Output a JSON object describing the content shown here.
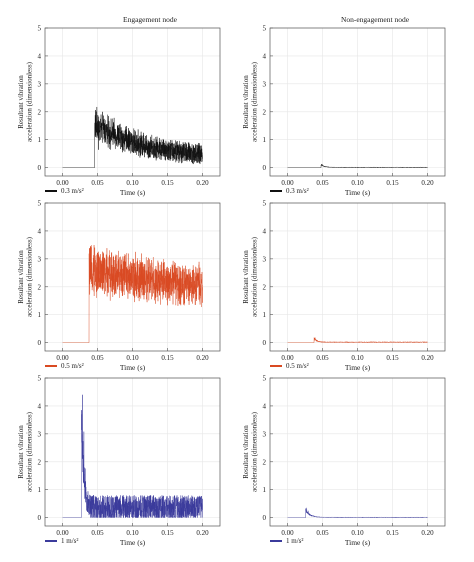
{
  "columns": [
    "Engagement node",
    "Non-engagement node"
  ],
  "chart_data": [
    {
      "type": "line",
      "column": "Engagement node",
      "xlabel": "Time (s)",
      "ylabel": [
        "Resultant vibration",
        "acceleration (dimensionless)"
      ],
      "xlim": [
        -0.025,
        0.225
      ],
      "ylim": [
        -0.3,
        5
      ],
      "xticks": [
        0.0,
        0.05,
        0.1,
        0.15,
        0.2
      ],
      "yticks": [
        0,
        1,
        2,
        3,
        4,
        5
      ],
      "grid": true,
      "series": [
        {
          "name": "0.3 m/s²",
          "color": "#111111",
          "onset": 0.046,
          "peak": 1.6,
          "level": 0.3,
          "level_noise": 0.35,
          "decay": 0.08,
          "spike_count": 3
        }
      ]
    },
    {
      "type": "line",
      "column": "Non-engagement node",
      "xlabel": "Time (s)",
      "ylabel": [
        "Resultant vibration",
        "acceleration (dimensionless)"
      ],
      "xlim": [
        -0.025,
        0.225
      ],
      "ylim": [
        -0.3,
        5
      ],
      "xticks": [
        0.0,
        0.05,
        0.1,
        0.15,
        0.2
      ],
      "yticks": [
        0,
        1,
        2,
        3,
        4,
        5
      ],
      "grid": true,
      "series": [
        {
          "name": "0.3 m/s²",
          "color": "#111111",
          "onset": 0.048,
          "peak": 0.12,
          "level": 0.02,
          "level_noise": 0.02,
          "decay": 0.005,
          "spike_count": 1
        }
      ]
    },
    {
      "type": "line",
      "column": "Engagement node",
      "xlabel": "Time (s)",
      "ylabel": [
        "Resultant vibration",
        "acceleration (dimensionless)"
      ],
      "xlim": [
        -0.025,
        0.225
      ],
      "ylim": [
        -0.3,
        5
      ],
      "xticks": [
        0.0,
        0.05,
        0.1,
        0.15,
        0.2
      ],
      "yticks": [
        0,
        1,
        2,
        3,
        4,
        5
      ],
      "grid": true,
      "series": [
        {
          "name": "0.5 m/s²",
          "color": "#d94a22",
          "onset": 0.038,
          "peak": 3.0,
          "level": 0.25,
          "level_noise": 0.35,
          "decay": 0.6,
          "spike_count": 2
        }
      ]
    },
    {
      "type": "line",
      "column": "Non-engagement node",
      "xlabel": "Time (s)",
      "ylabel": [
        "Resultant vibration",
        "acceleration (dimensionless)"
      ],
      "xlim": [
        -0.025,
        0.225
      ],
      "ylim": [
        -0.3,
        5
      ],
      "xticks": [
        0.0,
        0.05,
        0.1,
        0.15,
        0.2
      ],
      "yticks": [
        0,
        1,
        2,
        3,
        4,
        5
      ],
      "grid": true,
      "series": [
        {
          "name": "0.5 m/s²",
          "color": "#d94a22",
          "onset": 0.038,
          "peak": 0.18,
          "level": 0.03,
          "level_noise": 0.02,
          "decay": 0.004,
          "spike_count": 1
        }
      ]
    },
    {
      "type": "line",
      "column": "Engagement node",
      "xlabel": "Time (s)",
      "ylabel": [
        "Resultant vibration",
        "acceleration (dimensionless)"
      ],
      "xlim": [
        -0.025,
        0.225
      ],
      "ylim": [
        -0.3,
        5
      ],
      "xticks": [
        0.0,
        0.05,
        0.1,
        0.15,
        0.2
      ],
      "yticks": [
        0,
        1,
        2,
        3,
        4,
        5
      ],
      "grid": true,
      "series": [
        {
          "name": "1 m/s²",
          "color": "#3b3b9c",
          "onset": 0.027,
          "peak": 4.4,
          "level": 0.35,
          "level_noise": 0.45,
          "decay": 0.003,
          "spike_count": 3
        }
      ]
    },
    {
      "type": "line",
      "column": "Non-engagement node",
      "xlabel": "Time (s)",
      "ylabel": [
        "Resultant vibration",
        "acceleration (dimensionless)"
      ],
      "xlim": [
        -0.025,
        0.225
      ],
      "ylim": [
        -0.3,
        5
      ],
      "xticks": [
        0.0,
        0.05,
        0.1,
        0.15,
        0.2
      ],
      "yticks": [
        0,
        1,
        2,
        3,
        4,
        5
      ],
      "grid": true,
      "series": [
        {
          "name": "1 m/s²",
          "color": "#3b3b9c",
          "onset": 0.026,
          "peak": 0.35,
          "level": 0.02,
          "level_noise": 0.02,
          "decay": 0.006,
          "spike_count": 2
        }
      ]
    }
  ]
}
